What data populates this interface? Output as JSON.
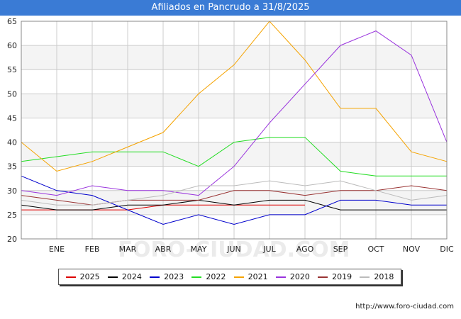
{
  "title": "Afiliados en Pancrudo a 31/8/2025",
  "footer_url": "http://www.foro-ciudad.com",
  "watermark": "FORO-CIUDAD.COM",
  "colors": {
    "title_bg": "#3a7bd5",
    "band": "#f4f4f4",
    "grid": "#cccccc"
  },
  "chart_data": {
    "type": "line",
    "x": [
      "",
      "ENE",
      "FEB",
      "MAR",
      "ABR",
      "MAY",
      "JUN",
      "JUL",
      "AGO",
      "SEP",
      "OCT",
      "NOV",
      "DIC"
    ],
    "ylim": [
      20,
      65
    ],
    "yticks": [
      20,
      25,
      30,
      35,
      40,
      45,
      50,
      55,
      60,
      65
    ],
    "grid": true,
    "legend_position": "bottom",
    "series": [
      {
        "name": "2025",
        "color": "#dd0000",
        "values": [
          26,
          26,
          26,
          26,
          27,
          27,
          27,
          27,
          27,
          null,
          null,
          null,
          null
        ]
      },
      {
        "name": "2024",
        "color": "#000000",
        "values": [
          27,
          26,
          26,
          27,
          27,
          28,
          27,
          28,
          28,
          26,
          26,
          26,
          26
        ]
      },
      {
        "name": "2023",
        "color": "#0000cc",
        "values": [
          33,
          30,
          29,
          26,
          23,
          25,
          23,
          25,
          25,
          28,
          28,
          27,
          27
        ]
      },
      {
        "name": "2022",
        "color": "#22dd22",
        "values": [
          36,
          37,
          38,
          38,
          38,
          35,
          40,
          41,
          41,
          34,
          33,
          33,
          33
        ]
      },
      {
        "name": "2021",
        "color": "#f5a300",
        "values": [
          40,
          34,
          36,
          39,
          42,
          50,
          56,
          65,
          57,
          47,
          47,
          38,
          36
        ]
      },
      {
        "name": "2020",
        "color": "#9933dd",
        "values": [
          30,
          29,
          31,
          30,
          30,
          29,
          35,
          44,
          52,
          60,
          63,
          58,
          40
        ]
      },
      {
        "name": "2019",
        "color": "#993333",
        "values": [
          29,
          28,
          27,
          28,
          28,
          28,
          30,
          30,
          29,
          30,
          30,
          31,
          30
        ]
      },
      {
        "name": "2018",
        "color": "#bbbbbb",
        "values": [
          28,
          27,
          27,
          28,
          29,
          31,
          31,
          32,
          31,
          32,
          30,
          28,
          29
        ]
      }
    ]
  }
}
